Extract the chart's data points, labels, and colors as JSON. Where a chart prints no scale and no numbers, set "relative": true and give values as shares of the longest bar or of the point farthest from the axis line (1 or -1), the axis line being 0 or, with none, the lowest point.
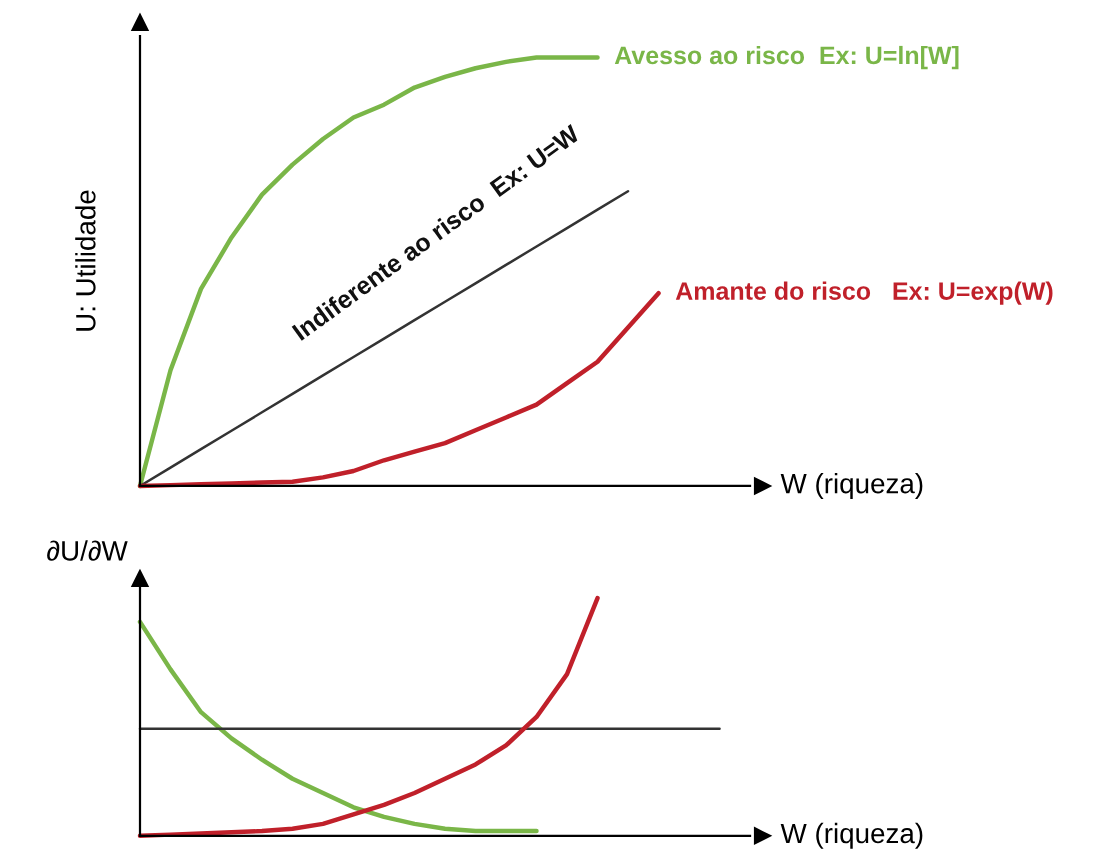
{
  "chart_data": [
    {
      "type": "line",
      "relative": true,
      "xlabel": "W (riqueza)",
      "ylabel": "U: Utilidade",
      "categories": [
        null,
        null,
        null,
        null,
        null,
        null,
        null,
        null,
        null,
        null,
        null,
        null,
        null,
        null,
        null,
        null,
        null,
        null,
        null,
        null,
        null
      ],
      "series": [
        {
          "name": "Avesso ao risco  Ex: U=ln[W]",
          "color": "#7ab648",
          "values": [
            0,
            0.27,
            0.46,
            0.58,
            0.68,
            0.75,
            0.81,
            0.86,
            0.89,
            0.93,
            0.955,
            0.975,
            0.99,
            1.0,
            1.0,
            1.0,
            null,
            null,
            null,
            null,
            null
          ]
        },
        {
          "name": "Indiferente ao risco  Ex: U=W",
          "color": "#333333",
          "values": [
            0,
            0.043,
            0.086,
            0.129,
            0.172,
            0.215,
            0.258,
            0.301,
            0.344,
            0.387,
            0.43,
            0.473,
            0.516,
            0.559,
            0.602,
            0.645,
            0.688,
            null,
            null,
            null,
            null
          ]
        },
        {
          "name": "Amante do risco   Ex: U=exp(W)",
          "color": "#c0202a",
          "values": [
            0,
            0.002,
            0.004,
            0.006,
            0.008,
            0.01,
            0.02,
            0.035,
            0.06,
            0.08,
            0.1,
            0.13,
            0.16,
            0.19,
            0.24,
            0.29,
            0.37,
            0.45,
            null,
            null,
            null
          ]
        }
      ]
    },
    {
      "type": "line",
      "relative": true,
      "xlabel": "W (riqueza)",
      "ylabel": "∂U/∂W",
      "categories": [
        null,
        null,
        null,
        null,
        null,
        null,
        null,
        null,
        null,
        null,
        null,
        null,
        null,
        null,
        null,
        null,
        null,
        null,
        null,
        null,
        null
      ],
      "series": [
        {
          "color": "#7ab648",
          "values": [
            0.9,
            0.7,
            0.52,
            0.41,
            0.32,
            0.24,
            0.18,
            0.12,
            0.08,
            0.05,
            0.03,
            0.02,
            0.02,
            0.02,
            null,
            null,
            null,
            null,
            null,
            null,
            null
          ]
        },
        {
          "color": "#333333",
          "values": [
            0.45,
            0.45,
            0.45,
            0.45,
            0.45,
            0.45,
            0.45,
            0.45,
            0.45,
            0.45,
            0.45,
            0.45,
            0.45,
            0.45,
            0.45,
            0.45,
            0.45,
            0.45,
            0.45,
            0.45,
            null
          ]
        },
        {
          "color": "#c0202a",
          "values": [
            0,
            0.005,
            0.01,
            0.015,
            0.02,
            0.03,
            0.05,
            0.09,
            0.13,
            0.18,
            0.24,
            0.3,
            0.38,
            0.5,
            0.68,
            1.0,
            null,
            null,
            null,
            null,
            null
          ]
        }
      ]
    }
  ]
}
